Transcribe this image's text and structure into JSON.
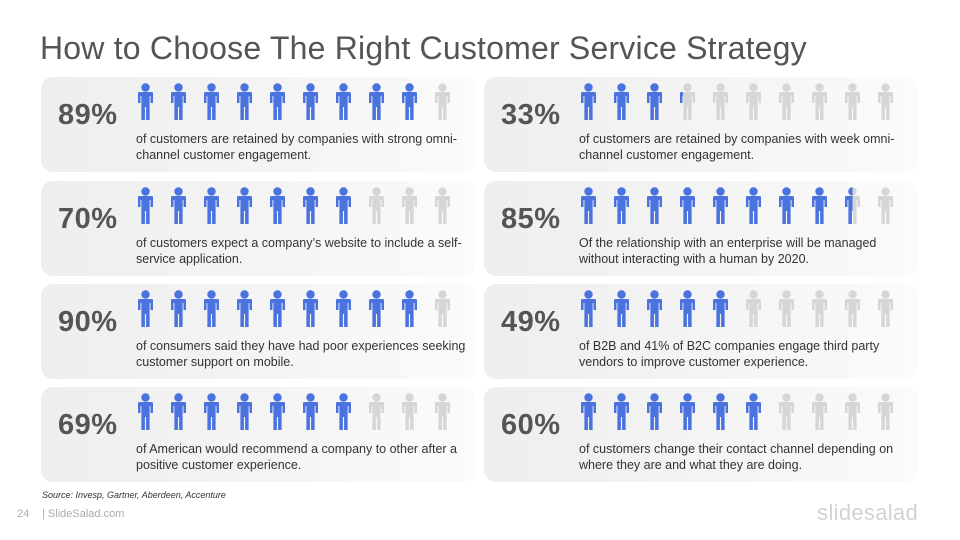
{
  "title": "How to Choose The Right Customer Service Strategy",
  "colors": {
    "filled": "#4a73e0",
    "empty": "#d6d6d6"
  },
  "icon": "person-icon",
  "cards": [
    {
      "pct": "89%",
      "filled": 8.9,
      "text": "of customers are retained by companies with strong omni-channel customer engagement."
    },
    {
      "pct": "33%",
      "filled": 3.3,
      "text": "of customers are retained by companies with week omni-channel customer engagement."
    },
    {
      "pct": "70%",
      "filled": 7.0,
      "text": "of customers expect a company’s website to include a self-service application."
    },
    {
      "pct": "85%",
      "filled": 8.5,
      "text": "Of the relationship with an enterprise will be managed without interacting with a human by 2020."
    },
    {
      "pct": "90%",
      "filled": 9.0,
      "text": "of consumers said they have had poor experiences seeking customer support on mobile."
    },
    {
      "pct": "49%",
      "filled": 4.9,
      "text": "of B2B and 41% of B2C companies engage third party vendors to improve customer experience."
    },
    {
      "pct": "69%",
      "filled": 6.9,
      "text": "of American would recommend a company to other after a positive customer experience."
    },
    {
      "pct": "60%",
      "filled": 6.0,
      "text": "of customers change their contact channel depending on where they are and what they are doing."
    }
  ],
  "footer": {
    "source": "Source: Invesp, Gartner, Aberdeen, Accenture",
    "page_number": "24",
    "site": "| SlideSalad.com",
    "brand": "slidesalad"
  }
}
